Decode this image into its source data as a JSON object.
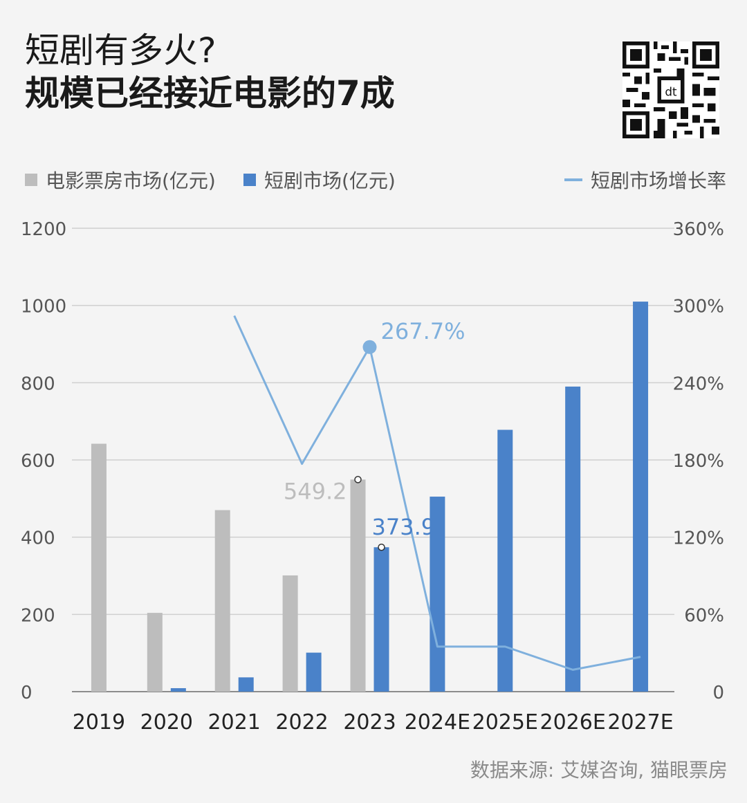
{
  "title": {
    "line1": "短剧有多火?",
    "line2": "规模已经接近电影的7成"
  },
  "legend": {
    "movie": "电影票房市场(亿元)",
    "drama": "短剧市场(亿元)",
    "growth": "短剧市场增长率"
  },
  "source": "数据来源: 艾媒咨询, 猫眼票房",
  "colors": {
    "movie": "#bdbdbd",
    "drama": "#4a82c9",
    "growth": "#7fb0dd"
  },
  "chart_data": {
    "type": "bar",
    "categories": [
      "2019",
      "2020",
      "2021",
      "2022",
      "2023",
      "2024E",
      "2025E",
      "2026E",
      "2027E"
    ],
    "series": [
      {
        "name": "电影票房市场(亿元)",
        "type": "bar",
        "values": [
          642,
          204,
          470,
          301,
          549.2,
          null,
          null,
          null,
          null
        ]
      },
      {
        "name": "短剧市场(亿元)",
        "type": "bar",
        "values": [
          null,
          9,
          37,
          101,
          373.9,
          505,
          678,
          790,
          1010
        ]
      },
      {
        "name": "短剧市场增长率",
        "type": "line",
        "axis": "right",
        "values": [
          null,
          null,
          292,
          177,
          267.7,
          35,
          35,
          17,
          27
        ]
      }
    ],
    "y_left": {
      "ticks": [
        "0",
        "200",
        "400",
        "600",
        "800",
        "1000",
        "1200"
      ],
      "ylim": [
        0,
        1200
      ]
    },
    "y_right": {
      "ticks": [
        "0",
        "60%",
        "120%",
        "180%",
        "240%",
        "300%",
        "360%"
      ],
      "ylim": [
        0,
        360
      ]
    },
    "annotations": [
      {
        "text": "549.2",
        "series": "movie",
        "category": "2023"
      },
      {
        "text": "373.9",
        "series": "drama",
        "category": "2023"
      },
      {
        "text": "267.7%",
        "series": "growth",
        "category": "2023"
      }
    ],
    "grid": true,
    "legend_position": "top"
  }
}
